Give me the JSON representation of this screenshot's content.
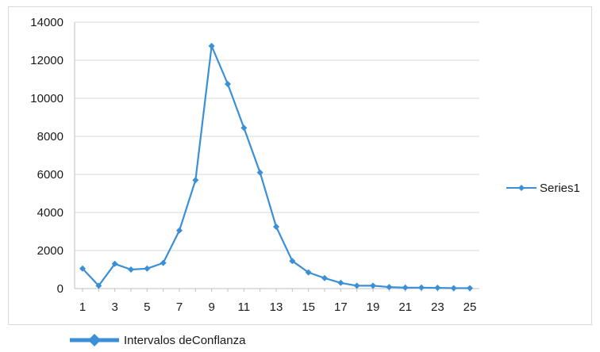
{
  "chart_data": {
    "type": "line",
    "x": [
      1,
      2,
      3,
      4,
      5,
      6,
      7,
      8,
      9,
      10,
      11,
      12,
      13,
      14,
      15,
      16,
      17,
      18,
      19,
      20,
      21,
      22,
      23,
      24,
      25
    ],
    "x_tick_labels": [
      "1",
      "3",
      "5",
      "7",
      "9",
      "11",
      "13",
      "15",
      "17",
      "19",
      "21",
      "23",
      "25"
    ],
    "series": [
      {
        "name": "Series1",
        "values": [
          1050,
          150,
          1300,
          1000,
          1050,
          1350,
          3050,
          5700,
          12750,
          10750,
          8450,
          6100,
          3250,
          1450,
          850,
          550,
          300,
          150,
          150,
          80,
          50,
          50,
          40,
          20,
          20
        ],
        "color": "#3a8fd6"
      }
    ],
    "ylim": [
      0,
      14000
    ],
    "y_ticks": [
      0,
      2000,
      4000,
      6000,
      8000,
      10000,
      12000,
      14000
    ],
    "y_tick_labels": [
      "0",
      "2000",
      "4000",
      "6000",
      "8000",
      "10000",
      "12000",
      "14000"
    ],
    "grid": "horizontal",
    "legend_position": "right",
    "title": "",
    "xlabel": "",
    "ylabel": ""
  },
  "bottom_legend": {
    "label": "Intervalos deConflanza",
    "color": "#3a8fd6"
  }
}
